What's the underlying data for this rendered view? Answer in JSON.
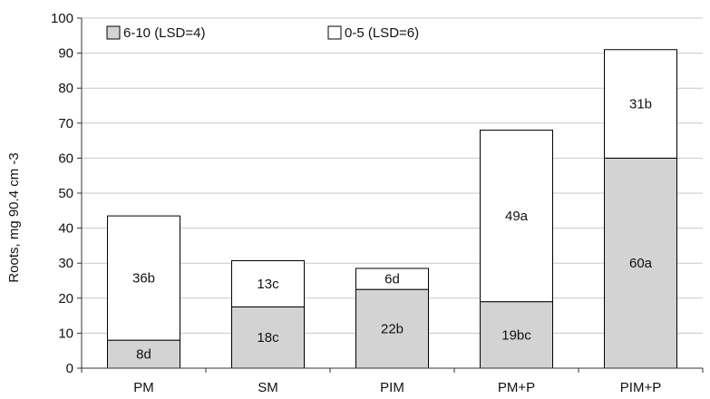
{
  "chart_data": {
    "type": "bar",
    "stacked": true,
    "title": "",
    "xlabel": "",
    "ylabel": "Roots, mg 90.4 cm -3",
    "ylim": [
      0,
      100
    ],
    "yticks": [
      0,
      10,
      20,
      30,
      40,
      50,
      60,
      70,
      80,
      90,
      100
    ],
    "grid": true,
    "legend_position": "top",
    "categories": [
      "PM",
      "SM",
      "PIM",
      "PM+P",
      "PIM+P"
    ],
    "series": [
      {
        "name": "6-10 (LSD=4)",
        "color": "#d3d3d3",
        "values": [
          8,
          17.5,
          22.5,
          19,
          60
        ],
        "labels": [
          "8d",
          "18c",
          "22b",
          "19bc",
          "60a"
        ]
      },
      {
        "name": "0-5 (LSD=6)",
        "color": "#ffffff",
        "values": [
          35.5,
          13.2,
          6,
          49,
          31
        ],
        "labels": [
          "36b",
          "13c",
          "6d",
          "49a",
          "31b"
        ]
      }
    ]
  }
}
